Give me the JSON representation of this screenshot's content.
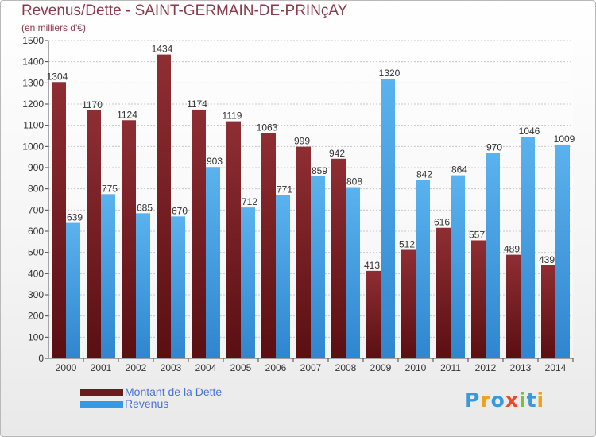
{
  "header": {
    "title": "Revenus/Dette - SAINT-GERMAIN-DE-PRINçAY",
    "subtitle": "(en milliers d'€)"
  },
  "legend": [
    {
      "label": "Montant de la Dette",
      "color": "#6b1a1d"
    },
    {
      "label": "Revenus",
      "color": "#3a98e0"
    }
  ],
  "logo": {
    "text": "Proxiti",
    "letters": [
      {
        "ch": "P",
        "color": "#3a9ad9"
      },
      {
        "ch": "r",
        "color": "#f0a020"
      },
      {
        "ch": "o",
        "color": "#3a9ad9"
      },
      {
        "ch": "x",
        "color": "#e84a2a"
      },
      {
        "ch": "i",
        "color": "#7cbf3a"
      },
      {
        "ch": "t",
        "color": "#3a9ad9"
      },
      {
        "ch": "i",
        "color": "#f0a020"
      }
    ]
  },
  "chart_data": {
    "type": "bar",
    "title": "Revenus/Dette - SAINT-GERMAIN-DE-PRINçAY",
    "ylabel": "(en milliers d'€)",
    "ylim": [
      0,
      1500
    ],
    "yticks": [
      0,
      100,
      200,
      300,
      400,
      500,
      600,
      700,
      800,
      900,
      1000,
      1100,
      1200,
      1300,
      1400,
      1500
    ],
    "grid": true,
    "legend_position": "bottom-left",
    "categories": [
      "2000",
      "2001",
      "2002",
      "2003",
      "2004",
      "2005",
      "2006",
      "2007",
      "2008",
      "2009",
      "2010",
      "2011",
      "2012",
      "2013",
      "2014"
    ],
    "series": [
      {
        "name": "Montant de la Dette",
        "color": "#6b1a1d",
        "values": [
          1304,
          1170,
          1124,
          1434,
          1174,
          1119,
          1063,
          999,
          942,
          413,
          512,
          616,
          557,
          489,
          439
        ]
      },
      {
        "name": "Revenus",
        "color": "#3a98e0",
        "values": [
          639,
          775,
          685,
          670,
          903,
          712,
          771,
          859,
          808,
          1320,
          842,
          864,
          970,
          1046,
          1009
        ]
      }
    ]
  }
}
